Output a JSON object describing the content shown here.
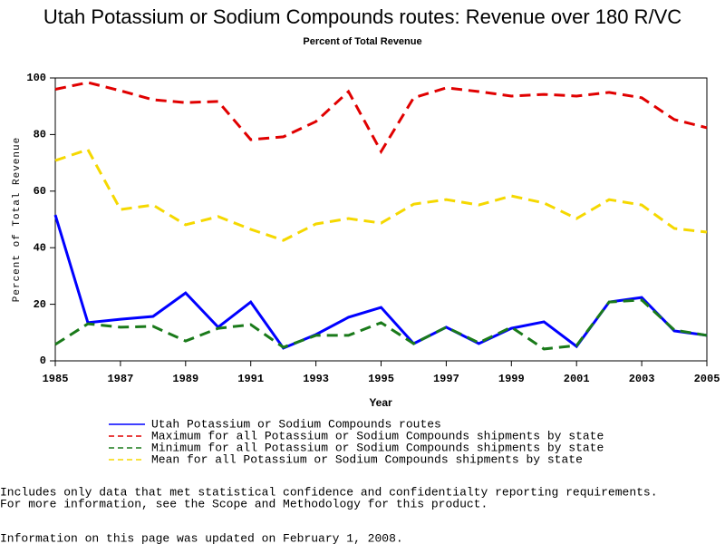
{
  "chart_data": {
    "type": "line",
    "title": "Utah Potassium or Sodium Compounds routes: Revenue over 180 R/VC",
    "subtitle": "Percent of Total Revenue",
    "x_label": "Year",
    "y_label": "Percent of Total Revenue",
    "x": [
      1985,
      1986,
      1987,
      1988,
      1989,
      1990,
      1991,
      1992,
      1993,
      1994,
      1995,
      1996,
      1997,
      1998,
      1999,
      2000,
      2001,
      2002,
      2003,
      2004,
      2005
    ],
    "xlim": [
      1985,
      2005
    ],
    "xticks": [
      1985,
      1987,
      1989,
      1991,
      1993,
      1995,
      1997,
      1999,
      2001,
      2003,
      2005
    ],
    "ylim": [
      0,
      100
    ],
    "yticks": [
      0,
      20,
      40,
      60,
      80,
      100
    ],
    "grid": false,
    "series": [
      {
        "name": "Utah Potassium or Sodium Compounds routes",
        "color": "#0000ff",
        "line_style": "solid",
        "values": [
          51.6,
          13.5,
          14.7,
          15.7,
          24,
          11.9,
          20.8,
          4.5,
          9.3,
          15.4,
          18.9,
          6.1,
          11.9,
          6.1,
          11.5,
          13.8,
          5.1,
          20.8,
          22.4,
          10.6,
          9.0
        ]
      },
      {
        "name": "Maximum for all Potassium or Sodium Compounds shipments by state",
        "color": "#e00000",
        "line_style": "dashed",
        "values": [
          96,
          98.4,
          95.5,
          92.3,
          91.3,
          91.7,
          78.2,
          79.2,
          84.6,
          95.2,
          74,
          93,
          96.5,
          95.2,
          93.6,
          94.2,
          93.6,
          94.9,
          93,
          85.3,
          82.4
        ]
      },
      {
        "name": "Minimum for all Potassium or Sodium Compounds shipments by state",
        "color": "#1a7a1a",
        "line_style": "dashed",
        "values": [
          5.8,
          13.1,
          11.9,
          12.2,
          7,
          11.5,
          12.8,
          4.8,
          9,
          9,
          13.5,
          6.1,
          11.9,
          6.4,
          11.9,
          4.2,
          5.4,
          20.8,
          21.5,
          10.9,
          9.0
        ]
      },
      {
        "name": "Mean for all Potassium or Sodium Compounds shipments by state",
        "color": "#f5d800",
        "line_style": "dashed",
        "values": [
          70.8,
          74.7,
          53.5,
          55.1,
          48.1,
          51,
          46.5,
          42.6,
          48.4,
          50.3,
          48.7,
          55.4,
          57,
          55.1,
          58.3,
          55.8,
          50.3,
          57,
          55.1,
          46.8,
          45.5
        ]
      }
    ],
    "notes": [
      "Includes only data that met statistical confidence and confidentialty reporting requirements.",
      "For more information, see the Scope and Methodology for this product.",
      "Information on this page was updated on February 1, 2008."
    ]
  }
}
